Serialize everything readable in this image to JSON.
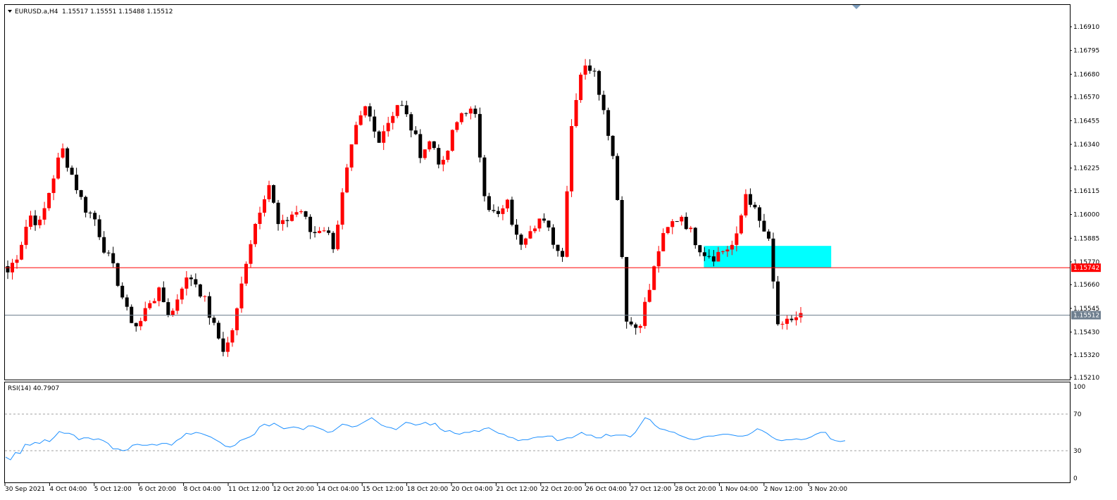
{
  "header": {
    "symbol": "EURUSD.a,H4",
    "ohlc": "1.15517 1.15551 1.15488 1.15512"
  },
  "rsi_header": "RSI(14) 40.7907",
  "colors": {
    "bull": "#ff0000",
    "bear": "#000000",
    "rsi_line": "#1e90ff",
    "hline_red": "#ff0000",
    "hline_bid": "#6f7f8f",
    "zone": "#00ffff"
  },
  "chart_data": [
    {
      "type": "candlestick",
      "symbol": "EURUSD.a",
      "timeframe": "H4",
      "y_ticks": [
        "1.16910",
        "1.16795",
        "1.16680",
        "1.16570",
        "1.16455",
        "1.16340",
        "1.16225",
        "1.16115",
        "1.16000",
        "1.15885",
        "1.15770",
        "1.15660",
        "1.15545",
        "1.15430",
        "1.15320",
        "1.15210"
      ],
      "ylim": [
        1.1521,
        1.1691
      ],
      "x_ticks": [
        "30 Sep 2021",
        "4 Oct 04:00",
        "5 Oct 12:00",
        "6 Oct 20:00",
        "8 Oct 04:00",
        "11 Oct 12:00",
        "12 Oct 20:00",
        "14 Oct 04:00",
        "15 Oct 12:00",
        "18 Oct 20:00",
        "20 Oct 04:00",
        "21 Oct 12:00",
        "22 Oct 20:00",
        "26 Oct 04:00",
        "27 Oct 12:00",
        "28 Oct 20:00",
        "1 Nov 04:00",
        "2 Nov 12:00",
        "3 Nov 20:00"
      ],
      "ohlc_close_path": [
        1.1572,
        1.1582,
        1.16,
        1.1595,
        1.1615,
        1.1632,
        1.1618,
        1.1604,
        1.1598,
        1.1582,
        1.157,
        1.1552,
        1.1545,
        1.1558,
        1.1562,
        1.155,
        1.1566,
        1.157,
        1.156,
        1.1545,
        1.1533,
        1.155,
        1.158,
        1.16,
        1.1616,
        1.1592,
        1.16,
        1.1602,
        1.159,
        1.1595,
        1.1585,
        1.1615,
        1.164,
        1.1652,
        1.1636,
        1.1645,
        1.1655,
        1.1644,
        1.163,
        1.1636,
        1.1622,
        1.164,
        1.1652,
        1.1648,
        1.1607,
        1.1598,
        1.1605,
        1.1585,
        1.1594,
        1.1598,
        1.159,
        1.1578,
        1.165,
        1.1675,
        1.1668,
        1.165,
        1.1618,
        1.1548,
        1.1545,
        1.1562,
        1.1585,
        1.1595,
        1.16,
        1.159,
        1.1582,
        1.158,
        1.1583,
        1.1586,
        1.1612,
        1.1598,
        1.1588,
        1.1542,
        1.1549,
        1.1551
      ],
      "price_lines": [
        {
          "label": "1.15742",
          "value": 1.15742,
          "color": "#ff0000"
        },
        {
          "label": "1.15512",
          "value": 1.15512,
          "color": "#6f7f8f"
        }
      ],
      "zone": {
        "from": "1 Nov 04:00",
        "to": "3 Nov 20:00",
        "low": 1.15742,
        "high": 1.158,
        "color": "#00ffff"
      }
    },
    {
      "type": "line",
      "name": "RSI(14)",
      "last_value": 40.7907,
      "y_ticks": [
        "100",
        "70",
        "30",
        "0"
      ],
      "ylim": [
        0,
        100
      ],
      "levels": [
        70,
        30
      ],
      "values": [
        23,
        20,
        28,
        27,
        37,
        36,
        39,
        38,
        42,
        40,
        45,
        51,
        49,
        49,
        47,
        42,
        44,
        44,
        42,
        43,
        41,
        38,
        32,
        32,
        30,
        31,
        36,
        37,
        36,
        36,
        37,
        36,
        38,
        38,
        36,
        41,
        44,
        49,
        48,
        50,
        49,
        47,
        45,
        42,
        39,
        35,
        34,
        36,
        41,
        43,
        45,
        48,
        56,
        59,
        57,
        60,
        57,
        54,
        55,
        56,
        55,
        53,
        57,
        57,
        55,
        53,
        50,
        51,
        55,
        59,
        58,
        56,
        57,
        60,
        63,
        66,
        62,
        58,
        56,
        55,
        53,
        57,
        61,
        60,
        58,
        59,
        61,
        58,
        60,
        54,
        51,
        52,
        49,
        48,
        50,
        50,
        52,
        51,
        54,
        55,
        52,
        49,
        48,
        45,
        44,
        41,
        42,
        42,
        44,
        45,
        45,
        46,
        46,
        41,
        42,
        44,
        44,
        47,
        50,
        47,
        47,
        44,
        44,
        48,
        46,
        47,
        47,
        47,
        45,
        50,
        58,
        66,
        64,
        58,
        54,
        53,
        51,
        50,
        47,
        45,
        43,
        42,
        43,
        45,
        46,
        46,
        47,
        48,
        48,
        47,
        46,
        46,
        47,
        50,
        54,
        52,
        49,
        45,
        42,
        41,
        42,
        42,
        43,
        42,
        43,
        45,
        48,
        50,
        50,
        43,
        41,
        40,
        41
      ]
    }
  ]
}
